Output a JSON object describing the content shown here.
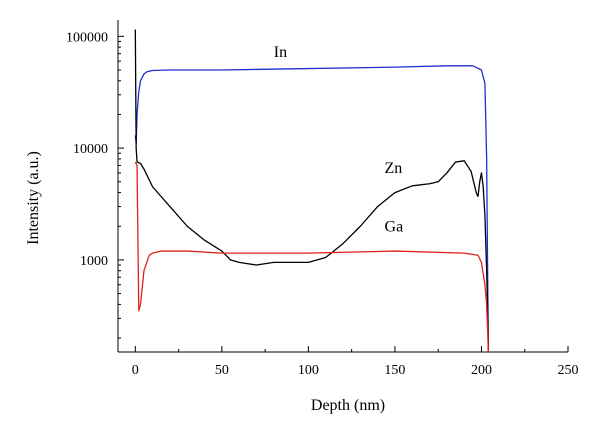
{
  "chart_data": {
    "type": "line",
    "xlabel": "Depth (nm)",
    "ylabel": "Intensity (a.u.)",
    "xlim": [
      -10,
      250
    ],
    "ylim": [
      150,
      140000
    ],
    "yscale": "log",
    "grid": false,
    "legend": "none",
    "x_ticks": [
      0,
      50,
      100,
      150,
      200,
      250
    ],
    "x_tick_labels": [
      "0",
      "50",
      "100",
      "150",
      "200",
      "250"
    ],
    "y_ticks": [
      1000,
      10000,
      100000
    ],
    "y_tick_labels": [
      "1000",
      "10000",
      "100000"
    ],
    "series": [
      {
        "name": "In",
        "color": "#1f2fd0",
        "x": [
          0,
          0.5,
          1,
          2,
          3,
          5,
          7,
          10,
          20,
          50,
          100,
          150,
          180,
          195,
          200,
          202,
          203,
          203.5,
          204
        ],
        "y": [
          13000,
          11000,
          20000,
          32000,
          40000,
          46000,
          48500,
          49500,
          50000,
          50000,
          51500,
          53000,
          54500,
          54500,
          50000,
          38000,
          8000,
          1000,
          150
        ]
      },
      {
        "name": "Zn",
        "color": "#000000",
        "x": [
          0,
          0.5,
          1,
          3,
          5,
          10,
          20,
          30,
          40,
          50,
          55,
          60,
          70,
          80,
          90,
          100,
          110,
          120,
          130,
          140,
          150,
          160,
          170,
          175,
          180,
          185,
          190,
          194,
          197,
          198,
          199,
          200,
          201,
          202,
          203,
          203.5,
          204
        ],
        "y": [
          115000,
          10000,
          7500,
          7300,
          6500,
          4500,
          3000,
          2000,
          1500,
          1200,
          1000,
          950,
          900,
          950,
          950,
          950,
          1050,
          1400,
          2000,
          3000,
          4000,
          4600,
          4800,
          5000,
          6000,
          7500,
          7700,
          6200,
          4000,
          3700,
          5000,
          6000,
          4500,
          2500,
          800,
          400,
          150
        ]
      },
      {
        "name": "Ga",
        "color": "#e0201a",
        "x": [
          0,
          1,
          2,
          3,
          5,
          8,
          10,
          15,
          30,
          50,
          100,
          150,
          190,
          198,
          200,
          202,
          203,
          203.5,
          204
        ],
        "y": [
          7500,
          7000,
          350,
          400,
          800,
          1100,
          1150,
          1200,
          1200,
          1150,
          1150,
          1200,
          1150,
          1100,
          950,
          600,
          400,
          250,
          150
        ]
      }
    ],
    "annotations": [
      {
        "text": "In",
        "x": 80,
        "y": 65000
      },
      {
        "text": "Zn",
        "x": 144,
        "y": 6000
      },
      {
        "text": "Ga",
        "x": 144,
        "y": 1800
      }
    ]
  }
}
